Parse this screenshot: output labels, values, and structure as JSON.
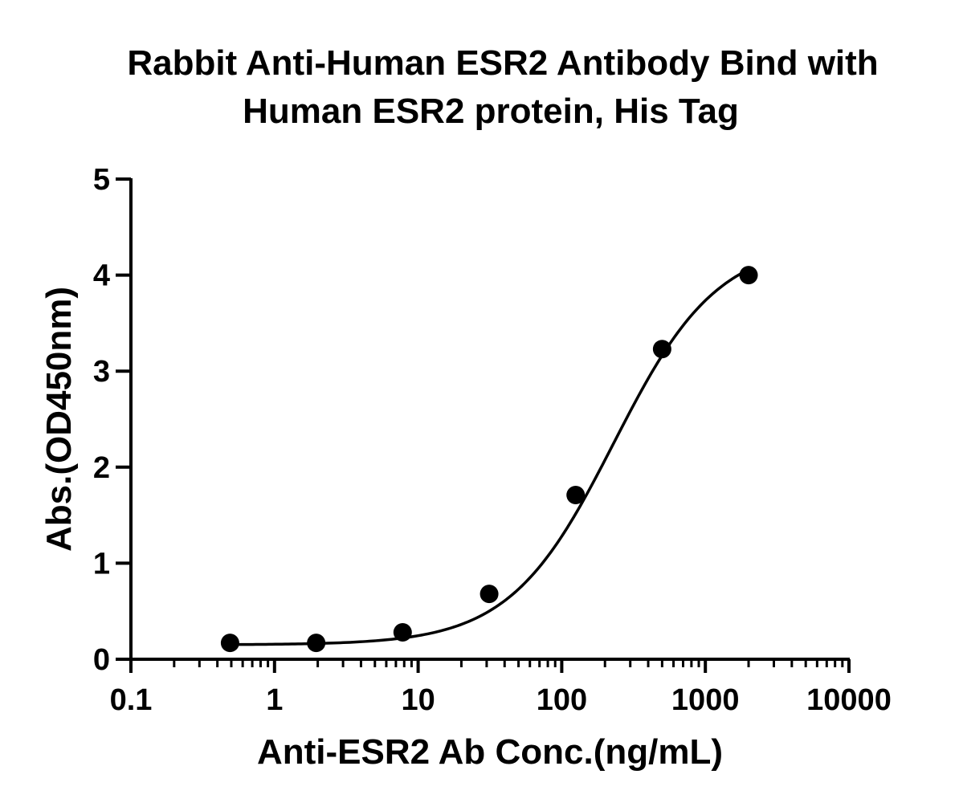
{
  "chart_data": {
    "type": "scatter",
    "title_lines": [
      "Rabbit Anti-Human ESR2 Antibody Bind with",
      "Human ESR2 protein, His Tag"
    ],
    "xlabel": "Anti-ESR2 Ab Conc.(ng/mL)",
    "ylabel": "Abs.(OD450nm)",
    "x_scale": "log",
    "xlim": [
      0.1,
      10000
    ],
    "ylim": [
      0,
      5
    ],
    "x_ticks": [
      0.1,
      1,
      10,
      100,
      1000,
      10000
    ],
    "x_tick_labels": [
      "0.1",
      "1",
      "10",
      "100",
      "1000",
      "10000"
    ],
    "y_ticks": [
      0,
      1,
      2,
      3,
      4,
      5
    ],
    "y_tick_labels": [
      "0",
      "1",
      "2",
      "3",
      "4",
      "5"
    ],
    "grid": false,
    "series": [
      {
        "x": [
          0.49,
          1.95,
          7.8,
          31.25,
          125,
          500,
          2000
        ],
        "y": [
          0.17,
          0.17,
          0.28,
          0.68,
          1.71,
          3.23,
          4.0
        ],
        "marker": "circle",
        "fit": "four-parameter logistic curve",
        "color": "#000000"
      }
    ]
  }
}
